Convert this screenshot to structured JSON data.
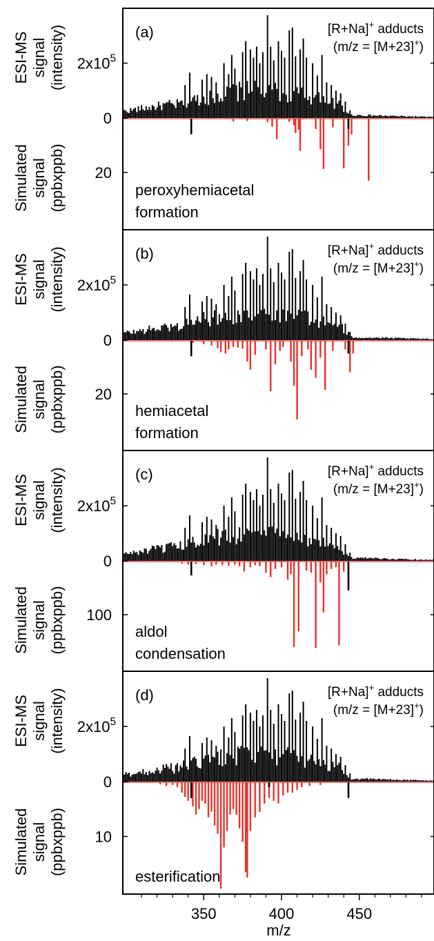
{
  "figure": {
    "x_axis": {
      "label": "m/z",
      "ticks": [
        350,
        400,
        450
      ],
      "range": [
        298,
        498
      ]
    },
    "colors": {
      "esi": "#000000",
      "simulated": "#e8322a",
      "frame": "#000000"
    }
  },
  "chart_data": [
    {
      "type": "bar",
      "panel": "(a)",
      "annotation": "peroxyhemiacetal\nformation",
      "adduct": {
        "line1": "[R+Na]",
        "sup1": "+",
        "line1b": " adducts",
        "line2": "(m/z = [M+23]",
        "sup2": "+",
        "line2b": ")"
      },
      "ylabel_top": [
        "ESI-MS",
        "signal",
        "(intensity)"
      ],
      "ylabel_bottom": [
        "Simulated",
        "signal",
        "(ppbxppb)"
      ],
      "top": {
        "ylim": [
          0,
          380000
        ],
        "tick_value": 200000,
        "tick_label": {
          "base": "2x10",
          "exp": "5"
        },
        "zero_label": "0"
      },
      "bottom": {
        "ylim": [
          0,
          40
        ],
        "tick_value": 20,
        "tick_label": "20",
        "black_bars": [
          [
            342,
            6
          ],
          [
            443,
            4
          ]
        ],
        "red_bars": [
          [
            369,
            1.3
          ],
          [
            378,
            1.1
          ],
          [
            391,
            1.6
          ],
          [
            394,
            3.2
          ],
          [
            397,
            7.8
          ],
          [
            405,
            1.4
          ],
          [
            408,
            2.7
          ],
          [
            409,
            5.5
          ],
          [
            411,
            4.3
          ],
          [
            412,
            12.1
          ],
          [
            422,
            4.1
          ],
          [
            425,
            11.5
          ],
          [
            427,
            18.7
          ],
          [
            433,
            3.4
          ],
          [
            440,
            18.5
          ],
          [
            443,
            10.2
          ],
          [
            445,
            6.0
          ],
          [
            456,
            23.0
          ]
        ]
      },
      "sample_ref": "a"
    },
    {
      "type": "bar",
      "panel": "(b)",
      "annotation": "hemiacetal\nformation",
      "adduct": {
        "line1": "[R+Na]",
        "sup1": "+",
        "line1b": " adducts",
        "line2": "(m/z = [M+23]",
        "sup2": "+",
        "line2b": ")"
      },
      "ylabel_top": [
        "ESI-MS",
        "signal",
        "(intensity)"
      ],
      "ylabel_bottom": [
        "Simulated",
        "signal",
        "(ppbxppb)"
      ],
      "top": {
        "ylim": [
          0,
          380000
        ],
        "tick_value": 200000,
        "tick_label": {
          "base": "2x10",
          "exp": "5"
        },
        "zero_label": "0"
      },
      "bottom": {
        "ylim": [
          0,
          40
        ],
        "tick_value": 20,
        "tick_label": "20",
        "black_bars": [
          [
            342,
            6
          ],
          [
            443,
            5
          ]
        ],
        "red_bars": [
          [
            343,
            1.0
          ],
          [
            350,
            1.5
          ],
          [
            355,
            2.0
          ],
          [
            359,
            3.0
          ],
          [
            361,
            4.5
          ],
          [
            364,
            5.0
          ],
          [
            366,
            3.5
          ],
          [
            369,
            2.5
          ],
          [
            372,
            2.8
          ],
          [
            375,
            3.2
          ],
          [
            378,
            8.0
          ],
          [
            380,
            11.0
          ],
          [
            383,
            5.5
          ],
          [
            390,
            3.5
          ],
          [
            393,
            19.0
          ],
          [
            396,
            9.0
          ],
          [
            399,
            4.0
          ],
          [
            401,
            2.5
          ],
          [
            406,
            8.0
          ],
          [
            408,
            17.0
          ],
          [
            410,
            29.5
          ],
          [
            413,
            6.0
          ],
          [
            417,
            3.5
          ],
          [
            419,
            11.0
          ],
          [
            422,
            14.0
          ],
          [
            425,
            6.5
          ],
          [
            428,
            18.5
          ],
          [
            433,
            4.0
          ],
          [
            441,
            3.5
          ],
          [
            444,
            12.0
          ],
          [
            446,
            5.0
          ]
        ]
      },
      "sample_ref": "b"
    },
    {
      "type": "bar",
      "panel": "(c)",
      "annotation": "aldol\ncondensation",
      "adduct": {
        "line1": "[R+Na]",
        "sup1": "+",
        "line1b": " adducts",
        "line2": "(m/z = [M+23]",
        "sup2": "+",
        "line2b": ")"
      },
      "ylabel_top": [
        "ESI-MS",
        "signal",
        "(intensity)"
      ],
      "ylabel_bottom": [
        "Simulated",
        "signal",
        "(ppbxppb)"
      ],
      "top": {
        "ylim": [
          0,
          380000
        ],
        "tick_value": 200000,
        "tick_label": {
          "base": "2x10",
          "exp": "5"
        },
        "zero_label": "0"
      },
      "bottom": {
        "ylim": [
          0,
          200
        ],
        "tick_value": 100,
        "tick_label": "100",
        "black_bars": [
          [
            342,
            27
          ],
          [
            443,
            55
          ]
        ],
        "red_bars": [
          [
            336,
            5
          ],
          [
            340,
            7
          ],
          [
            345,
            6
          ],
          [
            350,
            8
          ],
          [
            355,
            10
          ],
          [
            358,
            7
          ],
          [
            362,
            8
          ],
          [
            366,
            9
          ],
          [
            370,
            7
          ],
          [
            373,
            10
          ],
          [
            376,
            20
          ],
          [
            380,
            12
          ],
          [
            383,
            8
          ],
          [
            386,
            10
          ],
          [
            390,
            22
          ],
          [
            393,
            30
          ],
          [
            396,
            15
          ],
          [
            400,
            12
          ],
          [
            404,
            35
          ],
          [
            406,
            25
          ],
          [
            408,
            160
          ],
          [
            411,
            131
          ],
          [
            416,
            18
          ],
          [
            419,
            22
          ],
          [
            422,
            162
          ],
          [
            425,
            40
          ],
          [
            427,
            96
          ],
          [
            429,
            25
          ],
          [
            432,
            15
          ],
          [
            435,
            12
          ],
          [
            437,
            157
          ],
          [
            440,
            20
          ],
          [
            443,
            40
          ]
        ]
      },
      "sample_ref": "c"
    },
    {
      "type": "bar",
      "panel": "(d)",
      "annotation": "esterification",
      "adduct": {
        "line1": "[R+Na]",
        "sup1": "+",
        "line1b": " adducts",
        "line2": "(m/z = [M+23]",
        "sup2": "+",
        "line2b": ")"
      },
      "ylabel_top": [
        "ESI-MS",
        "signal",
        "(intensity)"
      ],
      "ylabel_bottom": [
        "Simulated",
        "signal",
        "(ppbxppb)"
      ],
      "top": {
        "ylim": [
          0,
          380000
        ],
        "tick_value": 200000,
        "tick_label": {
          "base": "2x10",
          "exp": "5"
        },
        "zero_label": "0"
      },
      "bottom": {
        "ylim": [
          0,
          20
        ],
        "tick_value": 10,
        "tick_label": "10",
        "black_bars": [
          [
            342,
            3
          ],
          [
            392,
            1.0
          ],
          [
            443,
            3
          ]
        ],
        "red_bars": [
          [
            322,
            0.5
          ],
          [
            326,
            0.8
          ],
          [
            330,
            0.6
          ],
          [
            333,
            1.0
          ],
          [
            336,
            2.0
          ],
          [
            338,
            2.8
          ],
          [
            340,
            3.5
          ],
          [
            343,
            4.5
          ],
          [
            345,
            6.0
          ],
          [
            347,
            5.0
          ],
          [
            349,
            3.5
          ],
          [
            351,
            4.0
          ],
          [
            353,
            6.5
          ],
          [
            355,
            5.5
          ],
          [
            357,
            8.0
          ],
          [
            359,
            9.5
          ],
          [
            361,
            19.5
          ],
          [
            363,
            12.0
          ],
          [
            365,
            9.0
          ],
          [
            367,
            6.0
          ],
          [
            369,
            5.0
          ],
          [
            371,
            6.0
          ],
          [
            373,
            8.5
          ],
          [
            375,
            11.0
          ],
          [
            377,
            16.5
          ],
          [
            378,
            17.5
          ],
          [
            380,
            9.0
          ],
          [
            383,
            6.5
          ],
          [
            386,
            5.5
          ],
          [
            389,
            4.0
          ],
          [
            392,
            3.0
          ],
          [
            395,
            3.5
          ],
          [
            398,
            4.0
          ],
          [
            401,
            2.5
          ],
          [
            404,
            2.0
          ],
          [
            407,
            2.0
          ],
          [
            410,
            1.5
          ],
          [
            413,
            1.0
          ],
          [
            418,
            0.8
          ],
          [
            425,
            0.6
          ]
        ]
      },
      "sample_ref": "d"
    }
  ]
}
